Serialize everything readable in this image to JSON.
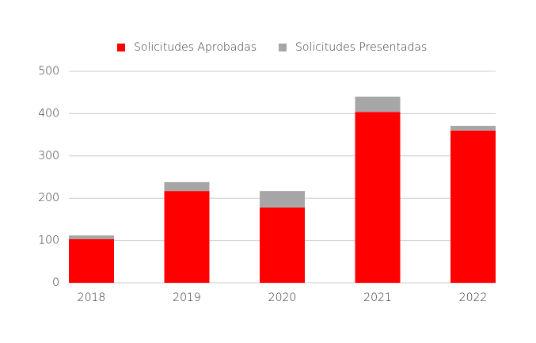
{
  "chart_data": {
    "type": "stacked_bar",
    "categories": [
      "2018",
      "2019",
      "2020",
      "2021",
      "2022"
    ],
    "series": [
      {
        "name": "Solicitudes Aprobadas",
        "color": "#ff0000",
        "values": [
          103,
          217,
          178,
          404,
          360
        ]
      },
      {
        "name": "Solicitudes Presentadas",
        "color": "#a6a6a6",
        "values": [
          9,
          21,
          39,
          36,
          11
        ]
      }
    ],
    "ylim": [
      0,
      500
    ],
    "yticks": [
      0,
      100,
      200,
      300,
      400,
      500
    ],
    "grid": true,
    "legend": "top"
  }
}
